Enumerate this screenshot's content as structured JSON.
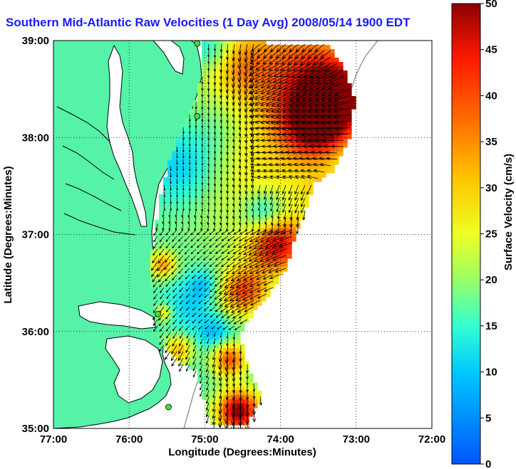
{
  "title": "Southern Mid-Atlantic Raw Velocities (1 Day Avg) 2008/05/14 1900 EDT",
  "xlabel": "Longitude (Degrees:Minutes)",
  "ylabel": "Latitude (Degrees:Minutes)",
  "x_ticks": [
    "77:00",
    "76:00",
    "75:00",
    "74:00",
    "73:00",
    "72:00"
  ],
  "y_ticks": [
    "39:00",
    "38:00",
    "37:00",
    "36:00",
    "35:00"
  ],
  "colorbar": {
    "label": "Surface Velocity (cm/s)",
    "ticks": [
      "0",
      "5",
      "10",
      "15",
      "20",
      "25",
      "30",
      "35",
      "40",
      "45",
      "50"
    ],
    "min": 0,
    "max": 50
  },
  "colors": {
    "land": "#55f2a8",
    "title": "#1a1aff",
    "coast": "#000000",
    "station": "#44dd44"
  },
  "chart_data": {
    "type": "heatmap",
    "subtype": "vector-field map",
    "xlim": [
      -77,
      -72
    ],
    "ylim": [
      35,
      39
    ],
    "grid": true,
    "colorbar_range": [
      0,
      50
    ],
    "stations": [
      {
        "lon": -75.1,
        "lat": 38.97
      },
      {
        "lon": -75.1,
        "lat": 38.22
      },
      {
        "lon": -75.62,
        "lat": 36.18
      },
      {
        "lon": -75.48,
        "lat": 35.22
      }
    ]
  }
}
